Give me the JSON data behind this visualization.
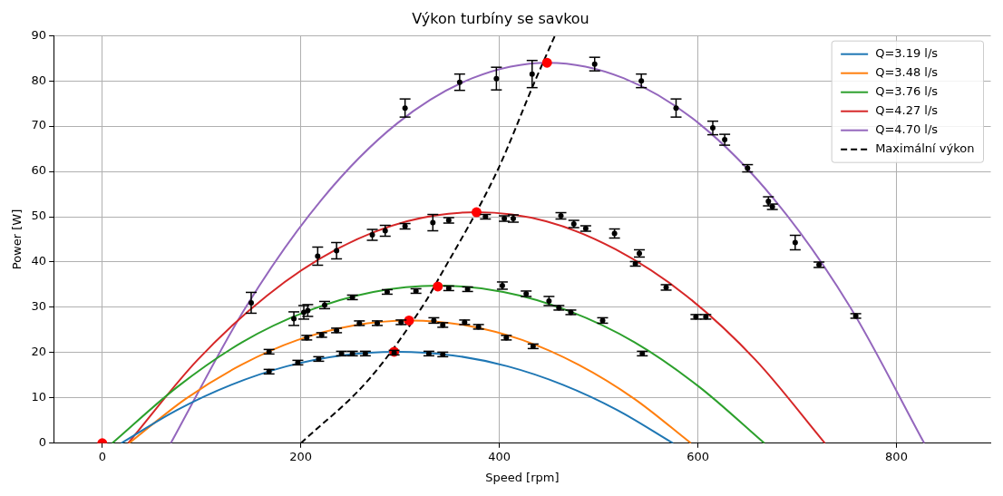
{
  "chart_data": {
    "type": "line",
    "title": "Výkon turbíny se savkou",
    "xlabel": "Speed [rpm]",
    "ylabel": "Power [W]",
    "xlim": [
      -49,
      895
    ],
    "ylim": [
      0,
      90
    ],
    "xticks": [
      0,
      200,
      400,
      600,
      800
    ],
    "yticks": [
      0,
      10,
      20,
      30,
      40,
      50,
      60,
      70,
      80,
      90
    ],
    "grid": true,
    "legend": "top right",
    "series": [
      {
        "name": "Q=3.19 l/s",
        "color": "#1f77b4",
        "x": [
          19,
          75,
          130,
          186,
          241,
          297,
          353,
          408,
          464,
          519,
          575
        ],
        "values": [
          0,
          7.3,
          12.9,
          17,
          19.4,
          20.2,
          19.4,
          17,
          12.9,
          7.3,
          0
        ]
      },
      {
        "name": "Q=3.48 l/s",
        "color": "#ff7f0e",
        "x": [
          27,
          84,
          140,
          197,
          253,
          310,
          367,
          423,
          480,
          536,
          593
        ],
        "values": [
          0,
          9.8,
          17.3,
          22.8,
          26,
          27.1,
          26,
          22.8,
          17.3,
          9.8,
          0
        ]
      },
      {
        "name": "Q=3.76 l/s",
        "color": "#2ca02c",
        "x": [
          10,
          76,
          141,
          207,
          273,
          338,
          404,
          470,
          536,
          601,
          667
        ],
        "values": [
          0,
          12.5,
          22.3,
          29.2,
          33.4,
          34.8,
          33.4,
          29.2,
          22.3,
          12.5,
          0
        ]
      },
      {
        "name": "Q=4.27 l/s",
        "color": "#d62728",
        "x": [
          26,
          96,
          166,
          236,
          307,
          377,
          447,
          517,
          588,
          658,
          728
        ],
        "values": [
          0,
          18.4,
          32.6,
          42.8,
          49,
          51,
          49,
          42.8,
          32.6,
          18.4,
          0
        ]
      },
      {
        "name": "Q=4.70 l/s",
        "color": "#9467bd",
        "x": [
          69,
          145,
          221,
          297,
          373,
          449,
          525,
          601,
          677,
          753,
          828
        ],
        "values": [
          0,
          30.2,
          53.8,
          70.6,
          80.6,
          84,
          80.6,
          70.6,
          53.8,
          30.2,
          0
        ]
      },
      {
        "name": "Maximální výkon",
        "color": "#000000",
        "line_style": "dashed",
        "x": [
          200,
          269,
          326,
          338,
          397,
          435,
          456
        ],
        "values": [
          0,
          14.2,
          31.4,
          36,
          59.7,
          79.5,
          90
        ]
      },
      {
        "type": "scatter",
        "marker": "circle",
        "color": "#000000",
        "x": [
          150,
          305,
          360,
          397,
          433,
          496,
          543,
          578,
          615,
          627,
          650,
          671,
          675,
          698,
          722,
          759,
          217,
          236,
          272,
          285,
          305,
          333,
          349,
          386,
          405,
          414,
          462,
          475,
          487,
          516,
          541,
          537,
          568,
          598,
          608,
          193,
          203,
          207,
          224,
          252,
          287,
          316,
          349,
          368,
          403,
          427,
          450,
          460,
          472,
          504,
          544,
          168,
          206,
          221,
          236,
          259,
          277,
          301,
          334,
          343,
          365,
          379,
          407,
          434,
          168,
          197,
          218,
          241,
          252,
          265,
          294,
          329,
          343
        ],
        "values": [
          31,
          74,
          79.7,
          80.5,
          81.5,
          83.7,
          80,
          74,
          69.6,
          67,
          60.7,
          53.4,
          52.2,
          44.3,
          39.4,
          28.1,
          41.3,
          42.5,
          46,
          46.9,
          47.9,
          48.7,
          49.2,
          50,
          49.6,
          49.6,
          50.2,
          48.4,
          47.4,
          46.3,
          41.9,
          39.6,
          34.4,
          27.9,
          27.9,
          27.5,
          28.9,
          29.3,
          30.5,
          32.2,
          33.4,
          33.6,
          34.2,
          34,
          34.8,
          33,
          31.4,
          29.9,
          28.9,
          27.1,
          19.8,
          20.2,
          23.3,
          23.9,
          24.9,
          26.5,
          26.5,
          26.7,
          27.1,
          26.1,
          26.7,
          25.7,
          23.3,
          21.4,
          15.8,
          17.8,
          18.6,
          19.8,
          19.8,
          19.8,
          20,
          19.8,
          19.6
        ],
        "errors": [
          2.3,
          2,
          1.8,
          2.5,
          3,
          1.5,
          1.5,
          2,
          1.5,
          1.2,
          0.8,
          1,
          0.6,
          1.6,
          0.6,
          0.5,
          2,
          1.8,
          1.2,
          1.2,
          0.6,
          1.8,
          0.6,
          0.5,
          0.6,
          0.8,
          0.7,
          0.8,
          0.6,
          1,
          0.8,
          0.5,
          0.6,
          0.5,
          0.5,
          1.5,
          1.5,
          1.3,
          0.8,
          0.5,
          0.5,
          0.5,
          0.5,
          0.5,
          0.8,
          0.6,
          1,
          0.5,
          0.5,
          0.6,
          0.5,
          0.5,
          0.5,
          0.5,
          0.5,
          0.5,
          0.5,
          0.5,
          0.6,
          0.5,
          0.5,
          0.5,
          0.5,
          0.5,
          0.5,
          0.5,
          0.5,
          0.5,
          0.5,
          0.5,
          0.5,
          0.5,
          0.5
        ]
      },
      {
        "type": "scatter",
        "marker": "circle",
        "color": "#ff0000",
        "x": [
          0,
          294,
          309,
          338,
          377,
          448
        ],
        "values": [
          0,
          20.2,
          27.1,
          34.6,
          51,
          84
        ]
      }
    ]
  }
}
